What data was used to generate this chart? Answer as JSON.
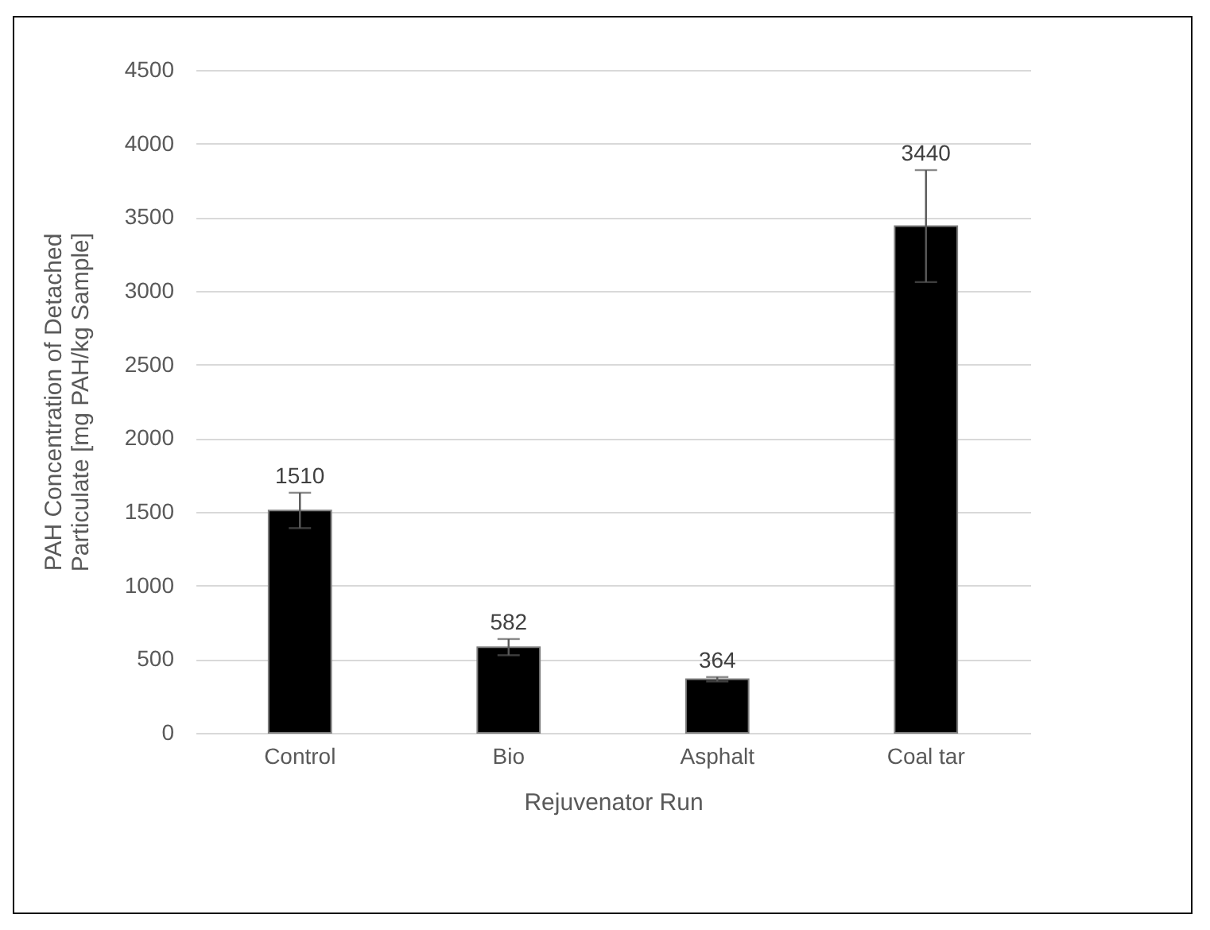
{
  "chart_data": {
    "type": "bar",
    "xlabel": "Rejuvenator Run",
    "ylabel": "PAH Concentration of Detached\nParticulate [mg PAH/kg Sample]",
    "categories": [
      "Control",
      "Bio",
      "Asphalt",
      "Coal tar"
    ],
    "values": [
      1510,
      582,
      364,
      3440
    ],
    "errors": [
      120,
      55,
      15,
      380
    ],
    "color": "#000000",
    "data_labels": true,
    "ylim": [
      0,
      4500
    ],
    "yticks": [
      0,
      500,
      1000,
      1500,
      2000,
      2500,
      3000,
      3500,
      4000,
      4500
    ],
    "grid": "y"
  }
}
